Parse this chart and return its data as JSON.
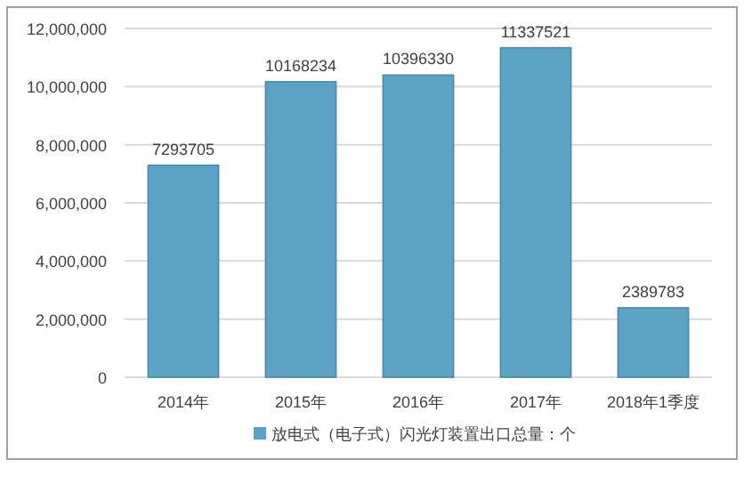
{
  "chart_data": {
    "type": "bar",
    "categories": [
      "2014年",
      "2015年",
      "2016年",
      "2017年",
      "2018年1季度"
    ],
    "series": [
      {
        "name": "放电式（电子式）闪光灯装置出口总量：个",
        "color": "#5ba3c4",
        "values": [
          7293705,
          10168234,
          10396330,
          11337521,
          2389783
        ]
      }
    ],
    "ylim": [
      0,
      12000000
    ],
    "yticks": [
      {
        "value": 0,
        "label": "0"
      },
      {
        "value": 2000000,
        "label": "2,000,000"
      },
      {
        "value": 4000000,
        "label": "4,000,000"
      },
      {
        "value": 6000000,
        "label": "6,000,000"
      },
      {
        "value": 8000000,
        "label": "8,000,000"
      },
      {
        "value": 10000000,
        "label": "10,000,000"
      },
      {
        "value": 12000000,
        "label": "12,000,000"
      }
    ],
    "grid": "y",
    "legend": "bottom",
    "data_labels": true
  }
}
